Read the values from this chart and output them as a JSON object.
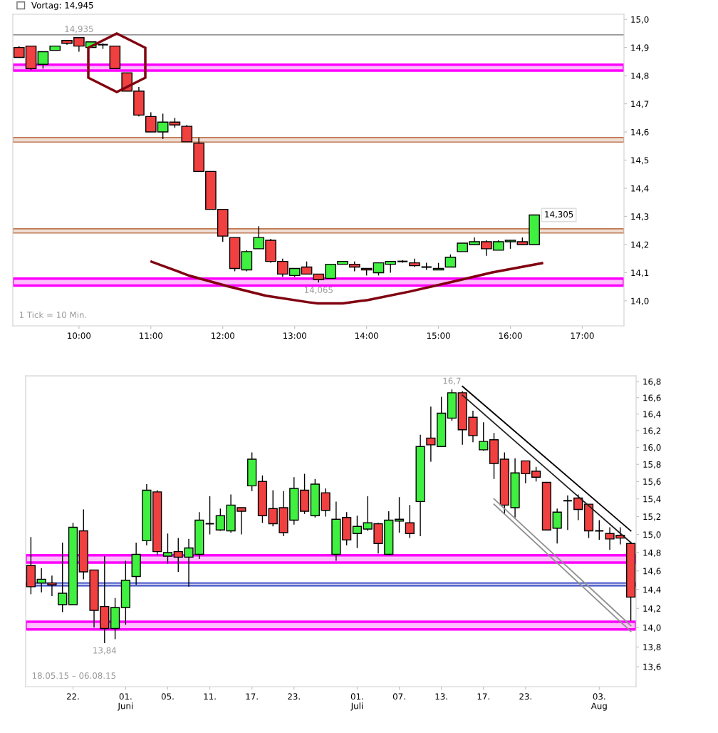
{
  "chart_data": [
    {
      "type": "candlestick",
      "x": [
        9.167,
        9.333,
        9.5,
        9.667,
        9.833,
        10,
        10.167,
        10.333,
        10.5,
        10.667,
        10.833,
        11,
        11.167,
        11.333,
        11.5,
        11.667,
        11.833,
        12,
        12.167,
        12.333,
        12.5,
        12.667,
        12.833,
        13,
        13.167,
        13.333,
        13.5,
        13.667,
        13.833,
        14,
        14.167,
        14.333,
        14.5,
        14.667,
        14.833,
        15,
        15.167,
        15.333,
        15.5,
        15.667,
        15.833,
        16,
        16.167,
        16.333
      ],
      "ohlc": [
        [
          14.9,
          14.905,
          14.865,
          14.865
        ],
        [
          14.905,
          14.905,
          14.82,
          14.825
        ],
        [
          14.84,
          14.885,
          14.825,
          14.885
        ],
        [
          14.89,
          14.905,
          14.89,
          14.905
        ],
        [
          14.925,
          14.925,
          14.91,
          14.915
        ],
        [
          14.935,
          14.935,
          14.885,
          14.905
        ],
        [
          14.9,
          14.92,
          14.9,
          14.92
        ],
        [
          14.91,
          14.915,
          14.895,
          14.91
        ],
        [
          14.905,
          14.905,
          14.825,
          14.825
        ],
        [
          14.81,
          14.81,
          14.745,
          14.745
        ],
        [
          14.745,
          14.76,
          14.655,
          14.66
        ],
        [
          14.655,
          14.67,
          14.6,
          14.6
        ],
        [
          14.6,
          14.665,
          14.575,
          14.635
        ],
        [
          14.635,
          14.65,
          14.615,
          14.625
        ],
        [
          14.62,
          14.625,
          14.565,
          14.565
        ],
        [
          14.56,
          14.58,
          14.46,
          14.46
        ],
        [
          14.46,
          14.46,
          14.325,
          14.325
        ],
        [
          14.325,
          14.325,
          14.21,
          14.23
        ],
        [
          14.225,
          14.225,
          14.105,
          14.115
        ],
        [
          14.11,
          14.18,
          14.105,
          14.175
        ],
        [
          14.185,
          14.265,
          14.185,
          14.225
        ],
        [
          14.215,
          14.22,
          14.135,
          14.14
        ],
        [
          14.14,
          14.15,
          14.085,
          14.095
        ],
        [
          14.09,
          14.115,
          14.085,
          14.115
        ],
        [
          14.12,
          14.14,
          14.095,
          14.095
        ],
        [
          14.095,
          14.095,
          14.065,
          14.075
        ],
        [
          14.08,
          14.13,
          14.08,
          14.13
        ],
        [
          14.13,
          14.14,
          14.13,
          14.14
        ],
        [
          14.13,
          14.14,
          14.105,
          14.12
        ],
        [
          14.115,
          14.115,
          14.09,
          14.11
        ],
        [
          14.1,
          14.135,
          14.09,
          14.135
        ],
        [
          14.13,
          14.14,
          14.1,
          14.14
        ],
        [
          14.14,
          14.145,
          14.135,
          14.14
        ],
        [
          14.135,
          14.15,
          14.12,
          14.125
        ],
        [
          14.12,
          14.135,
          14.11,
          14.12
        ],
        [
          14.11,
          14.135,
          14.11,
          14.115
        ],
        [
          14.12,
          14.165,
          14.12,
          14.155
        ],
        [
          14.175,
          14.205,
          14.175,
          14.205
        ],
        [
          14.2,
          14.225,
          14.2,
          14.21
        ],
        [
          14.21,
          14.215,
          14.16,
          14.185
        ],
        [
          14.18,
          14.215,
          14.18,
          14.21
        ],
        [
          14.21,
          14.215,
          14.185,
          14.215
        ],
        [
          14.21,
          14.225,
          14.2,
          14.2
        ],
        [
          14.2,
          14.305,
          14.2,
          14.305
        ]
      ],
      "colors": [
        "#f04040",
        "#f04040",
        "#40f040",
        "#40f040",
        "#f04040",
        "#f04040",
        "#40f040",
        "#000000",
        "#f04040",
        "#f04040",
        "#f04040",
        "#f04040",
        "#40f040",
        "#f04040",
        "#f04040",
        "#f04040",
        "#f04040",
        "#f04040",
        "#f04040",
        "#40f040",
        "#40f040",
        "#f04040",
        "#f04040",
        "#40f040",
        "#f04040",
        "#f04040",
        "#40f040",
        "#40f040",
        "#f04040",
        "#f04040",
        "#40f040",
        "#40f040",
        "#000000",
        "#f04040",
        "#000000",
        "#40f040",
        "#40f040",
        "#40f040",
        "#40f040",
        "#f04040",
        "#40f040",
        "#40f040",
        "#f04040",
        "#40f040"
      ],
      "series": [
        {
          "type": "line",
          "color": "#800010",
          "x": [
            11.01,
            11.54,
            12.08,
            12.6,
            13.19,
            13.32,
            13.67,
            14.02,
            14.6,
            15.18,
            15.75,
            16.44
          ],
          "values": [
            14.139,
            14.089,
            14.051,
            14.018,
            13.995,
            13.991,
            13.991,
            14.003,
            14.033,
            14.067,
            14.101,
            14.134
          ]
        }
      ],
      "xlim": [
        9.08,
        17.58
      ],
      "xticks": [
        {
          "value": 10,
          "label": "10:00"
        },
        {
          "value": 11,
          "label": "11:00"
        },
        {
          "value": 12,
          "label": "12:00"
        },
        {
          "value": 13,
          "label": "13:00"
        },
        {
          "value": 14,
          "label": "14:00"
        },
        {
          "value": 15,
          "label": "15:00"
        },
        {
          "value": 16,
          "label": "16:00"
        },
        {
          "value": 17,
          "label": "17:00"
        }
      ],
      "ylim": [
        13.911,
        15.018
      ],
      "yticks": [
        {
          "value": 14.0,
          "label": "14,0"
        },
        {
          "value": 14.1,
          "label": "14,1"
        },
        {
          "value": 14.2,
          "label": "14,2"
        },
        {
          "value": 14.3,
          "label": "14,3"
        },
        {
          "value": 14.4,
          "label": "14,4"
        },
        {
          "value": 14.5,
          "label": "14,5"
        },
        {
          "value": 14.6,
          "label": "14,6"
        },
        {
          "value": 14.7,
          "label": "14,7"
        },
        {
          "value": 14.8,
          "label": "14,8"
        },
        {
          "value": 14.9,
          "label": "14,9"
        },
        {
          "value": 15.0,
          "label": "15,0"
        }
      ],
      "ref_lines": [
        {
          "axis": "y",
          "value": 14.945,
          "label": "Vortag: 14,945",
          "color": "#707070"
        }
      ],
      "bands": [
        {
          "axis": "y",
          "from": 14.818,
          "to": 14.839,
          "color": "#ff00ff"
        },
        {
          "axis": "y",
          "from": 14.054,
          "to": 14.079,
          "color": "#ff00ff"
        },
        {
          "axis": "y",
          "from": 14.564,
          "to": 14.58,
          "color": "#c07850"
        },
        {
          "axis": "y",
          "from": 14.241,
          "to": 14.256,
          "color": "#c07850"
        }
      ],
      "annotations": [
        {
          "text": "14,935",
          "x": 10.0,
          "y": 14.935
        },
        {
          "text": "14,065",
          "x": 13.333,
          "y": 14.065
        },
        {
          "text": "14,305",
          "x": 16.333,
          "y": 14.305
        },
        "1 Tick = 10 Min."
      ],
      "legend": "top left"
    },
    {
      "type": "candlestick",
      "categories": [
        null,
        null,
        null,
        null,
        "22.",
        null,
        null,
        null,
        null,
        "01.\nJuni",
        null,
        null,
        null,
        "05.",
        null,
        null,
        null,
        "11.",
        null,
        null,
        null,
        "17.",
        null,
        null,
        null,
        "23.",
        null,
        null,
        null,
        null,
        null,
        "01.\nJuli",
        null,
        null,
        null,
        "07.",
        null,
        null,
        null,
        "13.",
        null,
        null,
        null,
        "17.",
        null,
        null,
        null,
        "23.",
        null,
        null,
        null,
        null,
        null,
        null,
        "03.\nAug",
        null,
        null,
        null
      ],
      "ohlc": [
        [
          14.66,
          14.97,
          14.35,
          14.43
        ],
        [
          14.47,
          14.63,
          14.37,
          14.51
        ],
        [
          14.47,
          14.55,
          14.33,
          14.45
        ],
        [
          14.24,
          14.91,
          14.16,
          14.36
        ],
        [
          14.24,
          15.13,
          14.24,
          15.08
        ],
        [
          15.04,
          15.28,
          14.51,
          14.59
        ],
        [
          14.61,
          14.61,
          14.0,
          14.18
        ],
        [
          14.22,
          14.76,
          13.84,
          13.99
        ],
        [
          13.99,
          14.31,
          13.88,
          14.21
        ],
        [
          14.21,
          14.71,
          14.03,
          14.5
        ],
        [
          14.54,
          14.91,
          14.45,
          14.78
        ],
        [
          14.93,
          15.57,
          14.88,
          15.5
        ],
        [
          15.48,
          15.5,
          14.77,
          14.81
        ],
        [
          14.76,
          15.01,
          14.68,
          14.8
        ],
        [
          14.81,
          14.96,
          14.59,
          14.75
        ],
        [
          14.75,
          14.95,
          14.43,
          14.85
        ],
        [
          14.78,
          15.25,
          14.73,
          15.16
        ],
        [
          15.12,
          15.43,
          15.0,
          15.12
        ],
        [
          15.05,
          15.29,
          15.04,
          15.21
        ],
        [
          15.04,
          15.45,
          15.02,
          15.33
        ],
        [
          15.3,
          15.3,
          15.0,
          15.26
        ],
        [
          15.55,
          15.94,
          15.49,
          15.86
        ],
        [
          15.6,
          15.67,
          15.13,
          15.21
        ],
        [
          15.29,
          15.5,
          15.09,
          15.12
        ],
        [
          15.3,
          15.49,
          14.98,
          15.02
        ],
        [
          15.16,
          15.65,
          15.11,
          15.52
        ],
        [
          15.5,
          15.69,
          15.23,
          15.26
        ],
        [
          15.21,
          15.63,
          15.19,
          15.57
        ],
        [
          15.47,
          15.52,
          15.2,
          15.27
        ],
        [
          14.78,
          15.37,
          14.71,
          15.17
        ],
        [
          15.19,
          15.25,
          14.88,
          14.94
        ],
        [
          15.01,
          15.21,
          14.85,
          15.09
        ],
        [
          15.06,
          15.43,
          15.04,
          15.13
        ],
        [
          15.12,
          15.13,
          14.79,
          14.9
        ],
        [
          14.78,
          15.26,
          14.78,
          15.16
        ],
        [
          15.15,
          15.42,
          15.02,
          15.17
        ],
        [
          15.13,
          15.33,
          14.96,
          15.01
        ],
        [
          15.37,
          16.15,
          14.98,
          16.01
        ],
        [
          16.11,
          16.49,
          15.83,
          16.03
        ],
        [
          16.01,
          16.61,
          16.01,
          16.41
        ],
        [
          16.35,
          16.7,
          16.32,
          16.66
        ],
        [
          16.66,
          16.68,
          16.03,
          16.21
        ],
        [
          16.36,
          16.44,
          16.06,
          16.14
        ],
        [
          15.97,
          16.3,
          15.96,
          16.07
        ],
        [
          16.09,
          16.17,
          15.63,
          15.81
        ],
        [
          15.86,
          15.94,
          15.23,
          15.33
        ],
        [
          15.3,
          15.87,
          15.19,
          15.7
        ],
        [
          15.84,
          15.84,
          15.58,
          15.69
        ],
        [
          15.72,
          15.77,
          15.6,
          15.65
        ],
        [
          15.59,
          15.59,
          15.05,
          15.05
        ],
        [
          15.07,
          15.29,
          14.9,
          15.25
        ],
        [
          15.38,
          15.44,
          15.05,
          15.38
        ],
        [
          15.41,
          15.45,
          15.16,
          15.28
        ],
        [
          15.34,
          15.34,
          14.96,
          15.04
        ],
        [
          15.04,
          15.16,
          14.94,
          15.04
        ],
        [
          15.01,
          15.08,
          14.83,
          14.95
        ],
        [
          14.99,
          15.08,
          14.89,
          14.96
        ],
        [
          14.9,
          14.92,
          14.07,
          14.32
        ]
      ],
      "colors": [
        "#f04040",
        "#40f040",
        "#f04040",
        "#40f040",
        "#40f040",
        "#f04040",
        "#f04040",
        "#f04040",
        "#40f040",
        "#40f040",
        "#40f040",
        "#40f040",
        "#f04040",
        "#40f040",
        "#f04040",
        "#40f040",
        "#40f040",
        "#000000",
        "#40f040",
        "#40f040",
        "#f04040",
        "#40f040",
        "#f04040",
        "#f04040",
        "#f04040",
        "#40f040",
        "#f04040",
        "#40f040",
        "#f04040",
        "#40f040",
        "#f04040",
        "#40f040",
        "#40f040",
        "#f04040",
        "#40f040",
        "#40f040",
        "#f04040",
        "#40f040",
        "#f04040",
        "#40f040",
        "#40f040",
        "#f04040",
        "#f04040",
        "#40f040",
        "#f04040",
        "#f04040",
        "#40f040",
        "#f04040",
        "#f04040",
        "#f04040",
        "#40f040",
        "#000000",
        "#f04040",
        "#f04040",
        "#000000",
        "#f04040",
        "#f04040",
        "#f04040"
      ],
      "series": [
        {
          "type": "line",
          "color": "#000000",
          "values": [
            null,
            null,
            null,
            null,
            null,
            null,
            null,
            null,
            null,
            null,
            null,
            null,
            null,
            null,
            null,
            null,
            null,
            null,
            null,
            null,
            null,
            null,
            null,
            null,
            null,
            null,
            null,
            null,
            null,
            null,
            null,
            null,
            null,
            null,
            null,
            null,
            null,
            null,
            null,
            null,
            null,
            16.74,
            null,
            null,
            null,
            null,
            null,
            null,
            null,
            null,
            null,
            null,
            null,
            null,
            null,
            null,
            null,
            15.04
          ]
        },
        {
          "type": "line",
          "color": "#202020",
          "values": [
            null,
            null,
            null,
            null,
            null,
            null,
            null,
            null,
            null,
            null,
            null,
            null,
            null,
            null,
            null,
            null,
            null,
            null,
            null,
            null,
            null,
            null,
            null,
            null,
            null,
            null,
            null,
            null,
            null,
            null,
            null,
            null,
            null,
            null,
            null,
            null,
            null,
            null,
            null,
            null,
            null,
            16.63,
            null,
            null,
            null,
            null,
            null,
            null,
            null,
            null,
            null,
            null,
            null,
            null,
            null,
            null,
            null,
            14.91
          ]
        },
        {
          "type": "line",
          "color": "#909090",
          "values": [
            null,
            null,
            null,
            null,
            null,
            null,
            null,
            null,
            null,
            null,
            null,
            null,
            null,
            null,
            null,
            null,
            null,
            null,
            null,
            null,
            null,
            null,
            null,
            null,
            null,
            null,
            null,
            null,
            null,
            null,
            null,
            null,
            null,
            null,
            null,
            null,
            null,
            null,
            null,
            null,
            null,
            null,
            null,
            null,
            15.4,
            null,
            null,
            null,
            null,
            null,
            null,
            null,
            null,
            null,
            null,
            null,
            null,
            14.02
          ]
        },
        {
          "type": "line",
          "color": "#909090",
          "values": [
            null,
            null,
            null,
            null,
            null,
            null,
            null,
            null,
            null,
            null,
            null,
            null,
            null,
            null,
            null,
            null,
            null,
            null,
            null,
            null,
            null,
            null,
            null,
            null,
            null,
            null,
            null,
            null,
            null,
            null,
            null,
            null,
            null,
            null,
            null,
            null,
            null,
            null,
            null,
            null,
            null,
            null,
            null,
            null,
            15.34,
            null,
            null,
            null,
            null,
            null,
            null,
            null,
            null,
            null,
            null,
            null,
            null,
            13.96
          ]
        }
      ],
      "log": "y",
      "ylim": [
        13.4,
        16.87
      ],
      "yticks": [
        {
          "value": 13.6,
          "label": "13,6"
        },
        {
          "value": 13.8,
          "label": "13,8"
        },
        {
          "value": 14.0,
          "label": "14,0"
        },
        {
          "value": 14.2,
          "label": "14,2"
        },
        {
          "value": 14.4,
          "label": "14,4"
        },
        {
          "value": 14.6,
          "label": "14,6"
        },
        {
          "value": 14.8,
          "label": "14,8"
        },
        {
          "value": 15.0,
          "label": "15,0"
        },
        {
          "value": 15.2,
          "label": "15,2"
        },
        {
          "value": 15.4,
          "label": "15,4"
        },
        {
          "value": 15.6,
          "label": "15,6"
        },
        {
          "value": 15.8,
          "label": "15,8"
        },
        {
          "value": 16.0,
          "label": "16,0"
        },
        {
          "value": 16.2,
          "label": "16,2"
        },
        {
          "value": 16.4,
          "label": "16,4"
        },
        {
          "value": 16.6,
          "label": "16,6"
        },
        {
          "value": 16.8,
          "label": "16,8"
        }
      ],
      "bands": [
        {
          "axis": "y",
          "from": 13.98,
          "to": 14.06,
          "color": "#ff00ff"
        },
        {
          "axis": "y",
          "from": 14.69,
          "to": 14.77,
          "color": "#ff00ff"
        },
        {
          "axis": "y",
          "from": 14.44,
          "to": 14.47,
          "color": "#3040c0"
        }
      ],
      "annotations": [
        {
          "text": "13,84",
          "y": 13.84
        },
        {
          "text": "16,7",
          "y": 16.7
        },
        "18.05.15 – 06.08.15"
      ]
    }
  ]
}
